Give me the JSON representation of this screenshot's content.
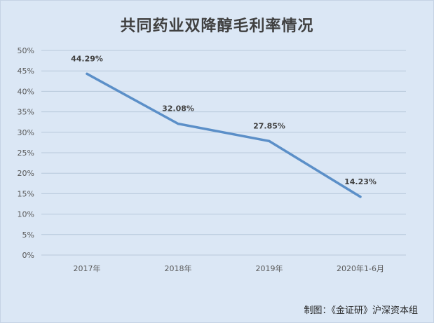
{
  "chart_data": {
    "type": "line",
    "title": "共同药业双降醇毛利率情况",
    "categories": [
      "2017年",
      "2018年",
      "2019年",
      "2020年1-6月"
    ],
    "series": [
      {
        "values": [
          44.29,
          32.08,
          27.85,
          14.23
        ],
        "data_labels": [
          "44.29%",
          "32.08%",
          "27.85%",
          "14.23%"
        ],
        "color": "#5b8fc8"
      }
    ],
    "y_ticks": [
      "0%",
      "5%",
      "10%",
      "15%",
      "20%",
      "25%",
      "30%",
      "35%",
      "40%",
      "45%",
      "50%"
    ],
    "ylim": [
      0,
      50
    ],
    "grid": true,
    "legend": "none"
  },
  "footer": {
    "source": "制图：《金证研》沪深资本组"
  },
  "colors": {
    "background": "#dbe7f5",
    "gridline": "#b8c8db",
    "line": "#5b8fc8"
  }
}
